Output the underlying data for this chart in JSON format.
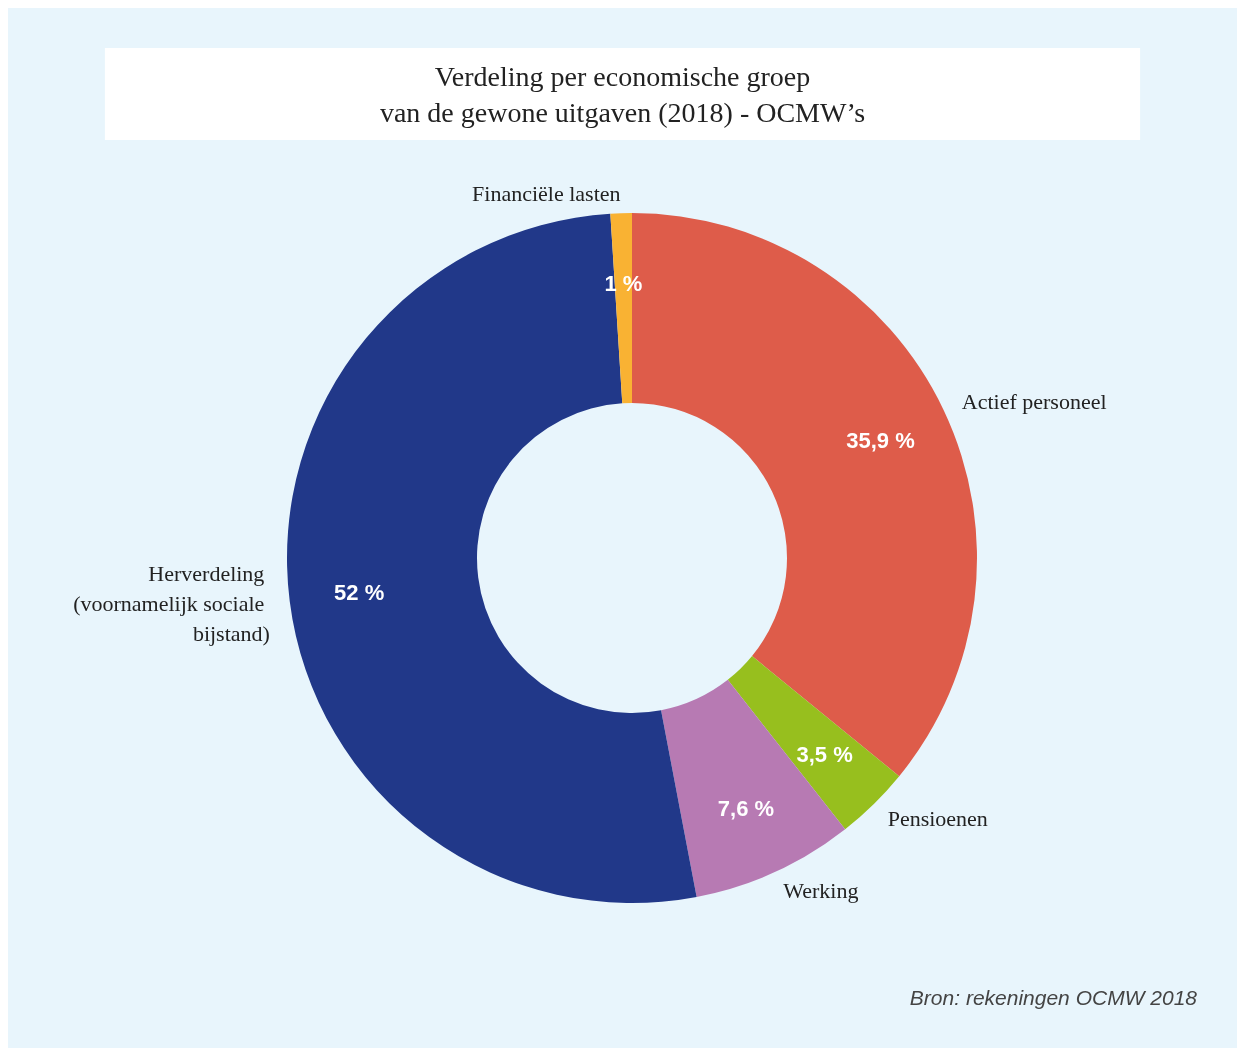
{
  "chart_data": {
    "type": "donut",
    "title": "Verdeling per economische groep\nvan de gewone uitgaven (2018) - OCMW’s",
    "categories": [
      "Actief personeel",
      "Pensioenen",
      "Werking",
      "Herverdeling (voornamelijk sociale bijstand)",
      "Financiële lasten"
    ],
    "values": [
      35.9,
      3.5,
      7.6,
      52,
      1
    ],
    "value_labels": [
      "35,9 %",
      "3,5 %",
      "7,6 %",
      "52 %",
      "1 %"
    ],
    "colors": [
      "#de5c4a",
      "#97bf1e",
      "#b77ab3",
      "#213889",
      "#f9b233"
    ],
    "annotations": [
      "Bron: rekeningen OCMW 2018"
    ]
  }
}
